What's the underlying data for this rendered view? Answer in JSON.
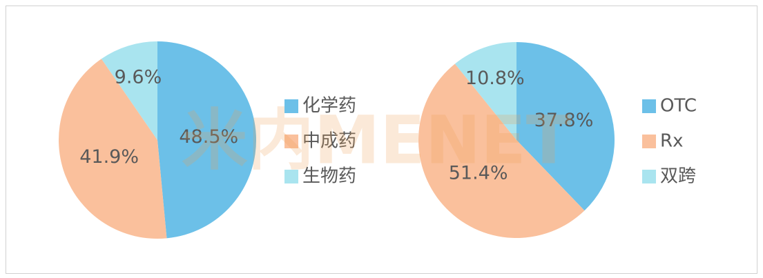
{
  "watermark": "米内MENET",
  "chart_data": [
    {
      "type": "pie",
      "categories": [
        "化学药",
        "中成药",
        "生物药"
      ],
      "values": [
        48.5,
        41.9,
        9.6
      ],
      "value_labels": [
        "48.5%",
        "41.9%",
        "9.6%"
      ],
      "colors": [
        "#6cc0e8",
        "#fac09c",
        "#a9e4ef"
      ],
      "legend": "right"
    },
    {
      "type": "pie",
      "categories": [
        "OTC",
        "Rx",
        "双跨"
      ],
      "values": [
        37.8,
        51.4,
        10.8
      ],
      "value_labels": [
        "37.8%",
        "51.4%",
        "10.8%"
      ],
      "colors": [
        "#6cc0e8",
        "#fac09c",
        "#a9e4ef"
      ],
      "legend": "right"
    }
  ]
}
